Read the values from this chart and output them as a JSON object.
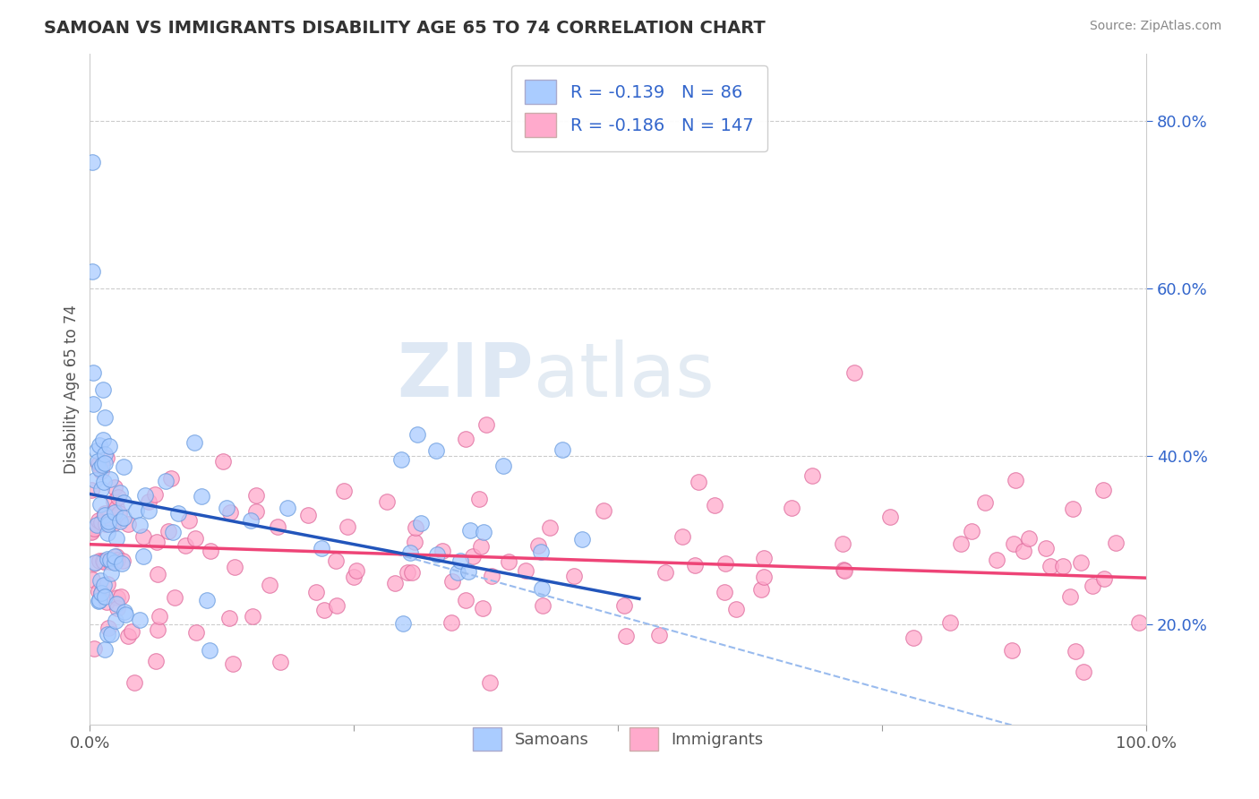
{
  "title": "SAMOAN VS IMMIGRANTS DISABILITY AGE 65 TO 74 CORRELATION CHART",
  "source": "Source: ZipAtlas.com",
  "ylabel": "Disability Age 65 to 74",
  "xlim": [
    0.0,
    1.0
  ],
  "ylim": [
    0.08,
    0.88
  ],
  "yticks_right": [
    0.2,
    0.4,
    0.6,
    0.8
  ],
  "ytick_right_labels": [
    "20.0%",
    "40.0%",
    "60.0%",
    "80.0%"
  ],
  "grid_color": "#cccccc",
  "background_color": "#ffffff",
  "samoans_color": "#aaccff",
  "immigrants_color": "#ffaacc",
  "samoans_edge_color": "#6699dd",
  "immigrants_edge_color": "#dd6699",
  "trend_samoan_color": "#2255bb",
  "trend_immigrant_color": "#ee4477",
  "trend_dashed_color": "#99bbee",
  "R_samoan": -0.139,
  "N_samoan": 86,
  "R_immigrant": -0.186,
  "N_immigrant": 147,
  "legend_text_color": "#3366cc",
  "watermark_zip": "ZIP",
  "watermark_atlas": "atlas"
}
